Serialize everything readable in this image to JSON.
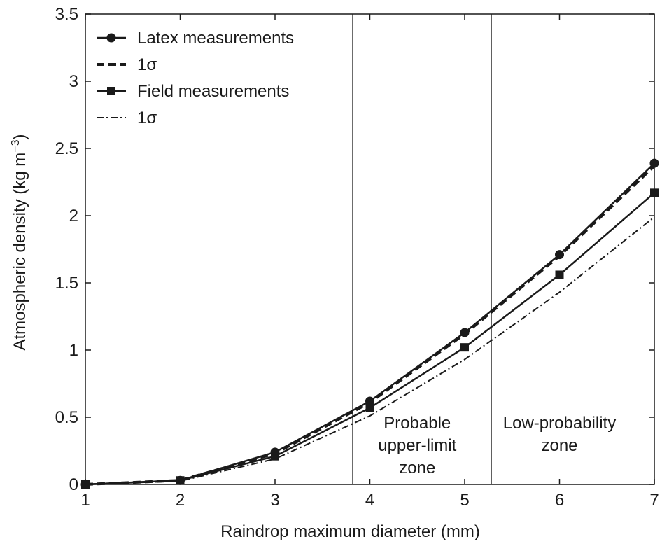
{
  "chart_data": {
    "type": "line",
    "xlabel": "Raindrop maximum diameter (mm)",
    "ylabel": "Atmospheric density (kg m",
    "ylabel_exponent": "−3",
    "ylabel_suffix": ")",
    "xlim": [
      1,
      7
    ],
    "ylim": [
      0,
      3.5
    ],
    "xticks": [
      "1",
      "2",
      "3",
      "4",
      "5",
      "6",
      "7"
    ],
    "yticks": [
      "0",
      "0.5",
      "1",
      "1.5",
      "2",
      "2.5",
      "3",
      "3.5"
    ],
    "grid": false,
    "legend_position": "top-left",
    "series": [
      {
        "name": "Latex measurements",
        "style": "solid",
        "marker": "circle",
        "color": "#1a1a1a",
        "x": [
          1,
          2,
          3,
          4,
          5,
          6,
          7
        ],
        "y": [
          0,
          0.03,
          0.24,
          0.62,
          1.13,
          1.71,
          2.39
        ]
      },
      {
        "name": "1σ",
        "style": "dashed",
        "marker": "none",
        "color": "#1a1a1a",
        "x": [
          1,
          2,
          3,
          4,
          5,
          6,
          7
        ],
        "y": [
          0,
          0.03,
          0.23,
          0.61,
          1.12,
          1.7,
          2.37
        ]
      },
      {
        "name": "Field measurements",
        "style": "solid",
        "marker": "square",
        "color": "#1a1a1a",
        "x": [
          1,
          2,
          3,
          4,
          5,
          6,
          7
        ],
        "y": [
          0,
          0.03,
          0.21,
          0.57,
          1.02,
          1.56,
          2.17
        ]
      },
      {
        "name": "1σ",
        "style": "dashdot",
        "marker": "none",
        "color": "#1a1a1a",
        "x": [
          1,
          2,
          3,
          4,
          5,
          6,
          7
        ],
        "y": [
          0,
          0.025,
          0.19,
          0.51,
          0.93,
          1.43,
          1.99
        ]
      }
    ],
    "vertical_lines": [
      3.82,
      5.28
    ],
    "zones": [
      {
        "x": 4.5,
        "lines": [
          "Probable",
          "upper-limit",
          "zone"
        ]
      },
      {
        "x": 6.0,
        "lines": [
          "Low-probability",
          "zone"
        ]
      }
    ]
  }
}
